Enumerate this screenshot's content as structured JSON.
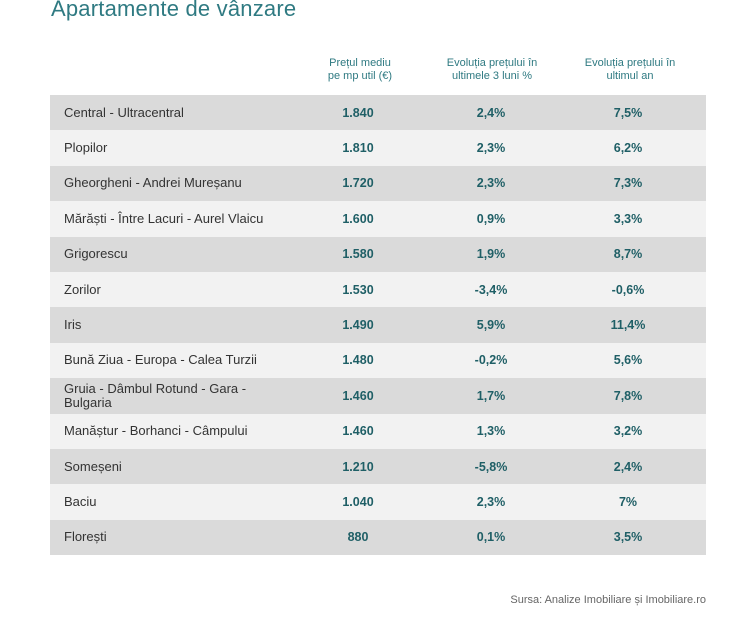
{
  "title": "Apartamente de vânzare",
  "columns": [
    {
      "line1": "Prețul mediu",
      "line2": "pe mp util (€)"
    },
    {
      "line1": "Evoluția prețului în",
      "line2": "ultimele 3 luni %"
    },
    {
      "line1": "Evoluția prețului în",
      "line2": "ultimul an"
    }
  ],
  "colors": {
    "accent": "#2f7a82",
    "value": "#1f5f66",
    "row_shade": "#dadada",
    "row_light": "#f2f2f2"
  },
  "chart_data": {
    "type": "table",
    "title": "Apartamente de vânzare",
    "headers": [
      "",
      "Prețul mediu pe mp util (€)",
      "Evoluția prețului în ultimele 3 luni %",
      "Evoluția prețului în ultimul an"
    ],
    "rows": [
      {
        "name": "Central - Ultracentral",
        "price": "1.840",
        "change3m": "2,4%",
        "change1y": "7,5%"
      },
      {
        "name": "Plopilor",
        "price": "1.810",
        "change3m": "2,3%",
        "change1y": "6,2%"
      },
      {
        "name": "Gheorgheni - Andrei Mureșanu",
        "price": "1.720",
        "change3m": "2,3%",
        "change1y": "7,3%"
      },
      {
        "name": "Mărăști - Între Lacuri - Aurel Vlaicu",
        "price": "1.600",
        "change3m": "0,9%",
        "change1y": "3,3%"
      },
      {
        "name": "Grigorescu",
        "price": "1.580",
        "change3m": "1,9%",
        "change1y": "8,7%"
      },
      {
        "name": "Zorilor",
        "price": "1.530",
        "change3m": "-3,4%",
        "change1y": "-0,6%"
      },
      {
        "name": "Iris",
        "price": "1.490",
        "change3m": "5,9%",
        "change1y": "11,4%"
      },
      {
        "name": "Bună Ziua - Europa - Calea Turzii",
        "price": "1.480",
        "change3m": "-0,2%",
        "change1y": "5,6%"
      },
      {
        "name": "Gruia - Dâmbul Rotund - Gara - Bulgaria",
        "price": "1.460",
        "change3m": "1,7%",
        "change1y": "7,8%"
      },
      {
        "name": "Manăștur - Borhanci - Câmpului",
        "price": "1.460",
        "change3m": "1,3%",
        "change1y": "3,2%"
      },
      {
        "name": "Someșeni",
        "price": "1.210",
        "change3m": "-5,8%",
        "change1y": "2,4%"
      },
      {
        "name": "Baciu",
        "price": "1.040",
        "change3m": "2,3%",
        "change1y": "7%"
      },
      {
        "name": "Florești",
        "price": "880",
        "change3m": "0,1%",
        "change1y": "3,5%"
      }
    ]
  },
  "source": "Sursa: Analize Imobiliare și Imobiliare.ro"
}
